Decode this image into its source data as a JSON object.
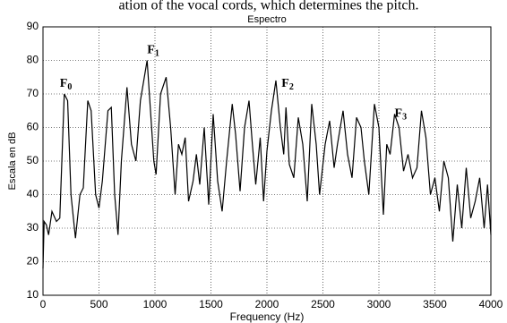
{
  "header_text": "ation of the vocal cords, which determines the pitch.",
  "chart_data": {
    "type": "line",
    "title": "Espectro",
    "xlabel": "Frequency (Hz)",
    "ylabel": "Escala en dB",
    "xlim": [
      0,
      4000
    ],
    "ylim": [
      10,
      90
    ],
    "xticks": [
      0,
      500,
      1000,
      1500,
      2000,
      2500,
      3000,
      3500,
      4000
    ],
    "yticks": [
      10,
      20,
      30,
      40,
      50,
      60,
      70,
      80,
      90
    ],
    "grid": true,
    "x": [
      0,
      10,
      30,
      50,
      80,
      120,
      150,
      190,
      220,
      250,
      290,
      330,
      360,
      400,
      430,
      470,
      500,
      530,
      580,
      610,
      640,
      670,
      700,
      750,
      790,
      830,
      870,
      930,
      960,
      990,
      1010,
      1050,
      1100,
      1140,
      1180,
      1210,
      1240,
      1270,
      1300,
      1340,
      1370,
      1400,
      1440,
      1480,
      1520,
      1560,
      1600,
      1640,
      1690,
      1720,
      1760,
      1800,
      1840,
      1870,
      1900,
      1940,
      1970,
      2000,
      2040,
      2080,
      2120,
      2150,
      2170,
      2200,
      2240,
      2280,
      2320,
      2360,
      2400,
      2440,
      2470,
      2520,
      2560,
      2600,
      2630,
      2680,
      2720,
      2760,
      2800,
      2840,
      2870,
      2910,
      2960,
      3000,
      3040,
      3070,
      3100,
      3140,
      3180,
      3220,
      3260,
      3300,
      3340,
      3380,
      3420,
      3460,
      3500,
      3540,
      3580,
      3620,
      3660,
      3700,
      3740,
      3780,
      3820,
      3860,
      3900,
      3940,
      3970,
      4000
    ],
    "series": [
      {
        "name": "Espectro",
        "color": "#000000",
        "values": [
          18,
          32,
          31,
          28,
          35,
          32,
          33,
          70,
          68,
          40,
          27,
          40,
          42,
          68,
          65,
          40,
          36,
          44,
          65,
          66,
          40,
          28,
          50,
          72,
          55,
          50,
          68,
          80,
          65,
          50,
          46,
          70,
          75,
          60,
          40,
          55,
          52,
          57,
          38,
          44,
          52,
          43,
          60,
          37,
          64,
          44,
          35,
          50,
          67,
          58,
          41,
          60,
          68,
          55,
          43,
          57,
          38,
          53,
          65,
          74,
          60,
          52,
          66,
          49,
          45,
          63,
          55,
          38,
          67,
          55,
          40,
          55,
          62,
          48,
          55,
          65,
          52,
          45,
          63,
          60,
          50,
          40,
          67,
          60,
          34,
          55,
          52,
          64,
          60,
          47,
          52,
          45,
          48,
          65,
          57,
          40,
          45,
          35,
          50,
          45,
          26,
          43,
          30,
          48,
          33,
          38,
          45,
          30,
          43,
          28
        ]
      }
    ],
    "annotations": [
      {
        "text": "F",
        "sub": "0",
        "x": 150,
        "y": 73
      },
      {
        "text": "F",
        "sub": "1",
        "x": 930,
        "y": 83
      },
      {
        "text": "F",
        "sub": "2",
        "x": 2130,
        "y": 73
      },
      {
        "text": "F",
        "sub": "3",
        "x": 3140,
        "y": 64
      }
    ]
  }
}
